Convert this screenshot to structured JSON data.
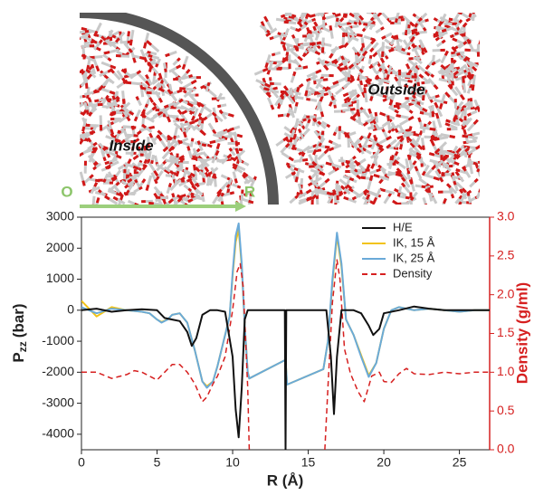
{
  "image_labels": {
    "inside": "Inside",
    "outside": "Outside",
    "origin": "O",
    "r_end": "R"
  },
  "chart_data": {
    "type": "line",
    "xlabel": "R (Å)",
    "ylabel": "P",
    "ylabel_sub": "zz",
    "ylabel_unit": "(bar)",
    "y2label": "Density (g/ml)",
    "xlim": [
      0,
      27
    ],
    "xticks": [
      0,
      5,
      10,
      15,
      20,
      25
    ],
    "ylim": [
      -4500,
      3000
    ],
    "yticks": [
      -4000,
      -3000,
      -2000,
      -1000,
      0,
      1000,
      2000,
      3000
    ],
    "y2lim": [
      0,
      3
    ],
    "y2ticks": [
      {
        "value": 0,
        "label": "0.0"
      },
      0.5,
      {
        "value": 1,
        "label": "1.0"
      },
      1.5,
      {
        "value": 2,
        "label": "2.0"
      },
      2.5,
      {
        "value": 3,
        "label": "3.0"
      }
    ],
    "y2color": "#d62020",
    "legend": "upper right",
    "series": [
      {
        "name": "H/E",
        "color": "#111111",
        "x": [
          0,
          1,
          2,
          3,
          4,
          5,
          5.5,
          6,
          6.5,
          7,
          7.3,
          7.6,
          8,
          8.5,
          9,
          9.5,
          10,
          10.2,
          10.4,
          10.6,
          10.8,
          11,
          12,
          13.45,
          13.5,
          13.55,
          15,
          16.2,
          16.5,
          16.7,
          16.9,
          17.2,
          18,
          18.5,
          19,
          19.3,
          19.7,
          20,
          21,
          22,
          23,
          24,
          25,
          26,
          27
        ],
        "values": [
          0,
          50,
          -50,
          0,
          30,
          0,
          -250,
          -300,
          -350,
          -700,
          -1150,
          -900,
          -150,
          0,
          0,
          -50,
          -1500,
          -3200,
          -4100,
          -2500,
          -300,
          0,
          0,
          0,
          -4500,
          0,
          0,
          0,
          -1500,
          -3350,
          -1500,
          0,
          0,
          -100,
          -500,
          -800,
          -600,
          -100,
          0,
          120,
          50,
          0,
          0,
          0,
          0
        ]
      },
      {
        "name": "IK, 15 Å",
        "color": "#f2c318",
        "x": [
          0,
          1,
          2,
          3,
          4,
          4.5,
          5,
          5.3,
          5.7,
          6,
          6.5,
          7,
          7.5,
          8,
          8.3,
          8.7,
          9,
          9.5,
          9.8,
          10,
          10.2,
          10.4,
          10.6,
          10.8,
          11,
          11.1,
          13.5,
          13.6,
          16,
          16.3,
          16.6,
          16.9,
          17.2,
          17.5,
          18,
          18.5,
          19,
          19.5,
          20,
          20.5,
          21,
          22,
          23,
          24,
          25,
          26,
          27
        ],
        "values": [
          300,
          -200,
          100,
          0,
          -50,
          -100,
          -300,
          -380,
          -300,
          -150,
          -100,
          -400,
          -1300,
          -2300,
          -2450,
          -2300,
          -1800,
          -800,
          -200,
          1100,
          2200,
          2600,
          1400,
          -500,
          -2000,
          -2200,
          -1600,
          -2400,
          -1900,
          -1000,
          900,
          2400,
          1400,
          -300,
          -800,
          -1450,
          -2100,
          -1700,
          -600,
          0,
          100,
          0,
          50,
          0,
          -50,
          0,
          0
        ]
      },
      {
        "name": "IK, 25 Å",
        "color": "#6aaad8",
        "x": [
          0,
          1,
          2,
          3,
          4,
          4.5,
          5,
          5.3,
          5.7,
          6,
          6.5,
          7,
          7.5,
          8,
          8.3,
          8.7,
          9,
          9.5,
          9.8,
          10,
          10.2,
          10.4,
          10.6,
          10.8,
          11,
          11.1,
          13.5,
          13.6,
          16,
          16.3,
          16.6,
          16.9,
          17.2,
          17.5,
          18,
          18.5,
          19,
          19.5,
          20,
          20.5,
          21,
          22,
          23,
          24,
          25,
          26,
          27
        ],
        "values": [
          100,
          -100,
          50,
          0,
          -50,
          -100,
          -300,
          -400,
          -300,
          -150,
          -100,
          -400,
          -1300,
          -2300,
          -2500,
          -2300,
          -1800,
          -800,
          -200,
          1200,
          2400,
          2800,
          1500,
          -500,
          -2000,
          -2200,
          -1600,
          -2400,
          -1900,
          -1000,
          1000,
          2500,
          1500,
          -300,
          -800,
          -1500,
          -2150,
          -1700,
          -600,
          0,
          100,
          0,
          50,
          0,
          -50,
          0,
          0
        ]
      },
      {
        "name": "Density",
        "color": "#d62020",
        "dashed": true,
        "axis": "y2",
        "x": [
          0,
          1,
          2,
          3,
          3.5,
          4,
          5,
          5.5,
          6,
          6.5,
          7,
          7.5,
          8,
          8.3,
          8.7,
          9,
          9.5,
          10,
          10.3,
          10.5,
          10.7,
          11,
          11.1,
          13.5,
          16.1,
          16.3,
          16.6,
          16.9,
          17.1,
          17.4,
          17.8,
          18.3,
          18.7,
          19.2,
          19.7,
          20,
          20.5,
          21,
          21.5,
          22,
          23,
          24,
          25,
          26,
          27
        ],
        "values": [
          1.0,
          1.0,
          0.92,
          0.97,
          1.02,
          1.0,
          0.9,
          1.0,
          1.1,
          1.1,
          1.0,
          0.85,
          0.62,
          0.68,
          0.85,
          0.95,
          1.2,
          1.8,
          2.3,
          2.4,
          2.1,
          0.8,
          0.0,
          null,
          0.0,
          0.8,
          1.9,
          2.45,
          2.2,
          1.3,
          0.98,
          0.75,
          0.62,
          0.95,
          1.0,
          0.88,
          0.87,
          0.98,
          1.05,
          0.98,
          0.97,
          1.0,
          0.98,
          1.0,
          1.0
        ]
      }
    ]
  }
}
